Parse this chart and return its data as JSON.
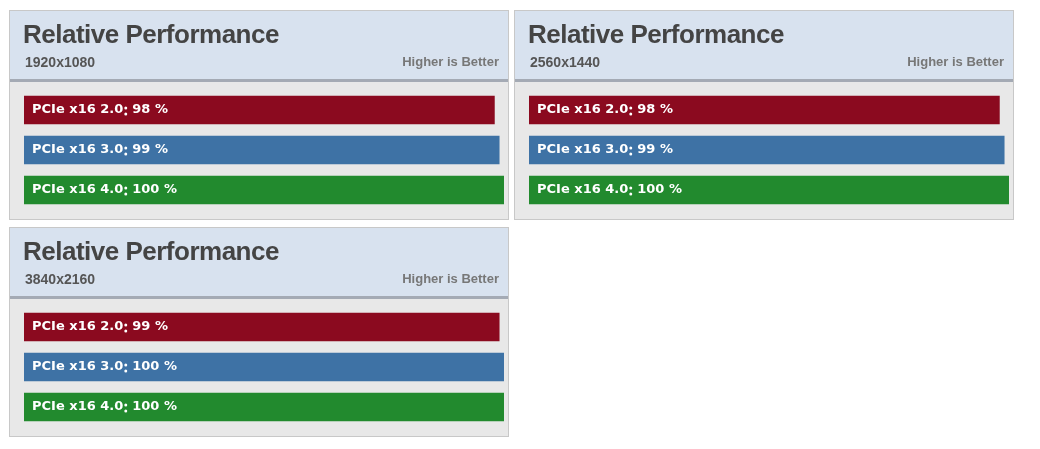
{
  "chart_data": [
    {
      "type": "bar",
      "orientation": "horizontal",
      "title": "Relative Performance",
      "subtitle": "1920x1080",
      "annotations": [
        "Higher is Better"
      ],
      "categories": [
        "PCIe x16 2.0",
        "PCIe x16 3.0",
        "PCIe x16 4.0"
      ],
      "values": [
        98,
        99,
        100
      ],
      "value_labels": [
        "98 %",
        "99 %",
        "100 %"
      ],
      "colors": [
        "#8b0a1f",
        "#3e72a5",
        "#228a2e"
      ],
      "tick_labels": false,
      "legend": false
    },
    {
      "type": "bar",
      "orientation": "horizontal",
      "title": "Relative Performance",
      "subtitle": "2560x1440",
      "annotations": [
        "Higher is Better"
      ],
      "categories": [
        "PCIe x16 2.0",
        "PCIe x16 3.0",
        "PCIe x16 4.0"
      ],
      "values": [
        98,
        99,
        100
      ],
      "value_labels": [
        "98 %",
        "99 %",
        "100 %"
      ],
      "colors": [
        "#8b0a1f",
        "#3e72a5",
        "#228a2e"
      ],
      "tick_labels": false,
      "legend": false
    },
    {
      "type": "bar",
      "orientation": "horizontal",
      "title": "Relative Performance",
      "subtitle": "3840x2160",
      "annotations": [
        "Higher is Better"
      ],
      "categories": [
        "PCIe x16 2.0",
        "PCIe x16 3.0",
        "PCIe x16 4.0"
      ],
      "values": [
        99,
        100,
        100
      ],
      "value_labels": [
        "99 %",
        "100 %",
        "100 %"
      ],
      "colors": [
        "#8b0a1f",
        "#3e72a5",
        "#228a2e"
      ],
      "tick_labels": false,
      "legend": false
    }
  ]
}
